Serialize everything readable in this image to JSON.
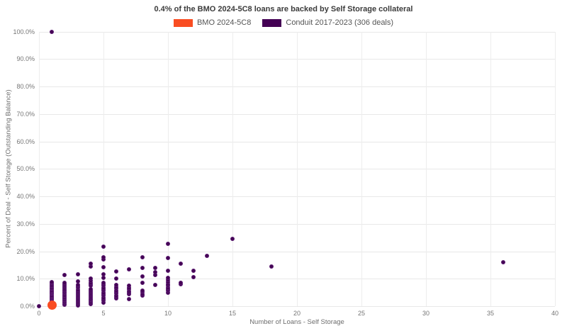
{
  "chart_data": {
    "type": "scatter",
    "title": "0.4% of the BMO 2024-5C8 loans are backed by Self Storage collateral",
    "xlabel": "Number of Loans - Self Storage",
    "ylabel": "Percent of Deal - Self Storage (Outstanding Balance)",
    "xlim": [
      0,
      40
    ],
    "ylim": [
      0,
      100
    ],
    "x_ticks": [
      0,
      5,
      10,
      15,
      20,
      25,
      30,
      35,
      40
    ],
    "x_tick_labels": [
      "0",
      "5",
      "10",
      "15",
      "20",
      "25",
      "30",
      "35",
      "40"
    ],
    "y_ticks": [
      0,
      10,
      20,
      30,
      40,
      50,
      60,
      70,
      80,
      90,
      100
    ],
    "y_tick_labels": [
      "0.0%",
      "10.0%",
      "20.0%",
      "30.0%",
      "40.0%",
      "50.0%",
      "60.0%",
      "70.0%",
      "80.0%",
      "90.0%",
      "100.0%"
    ],
    "grid": true,
    "legend_position": "top",
    "series": [
      {
        "name": "Conduit 2017-2023 (306 deals)",
        "color": "#440154",
        "edge_color": "#5a1a70",
        "marker_size": 6,
        "points": [
          [
            0,
            0.1
          ],
          [
            1,
            0.3
          ],
          [
            1,
            0.7
          ],
          [
            1,
            1.0
          ],
          [
            1,
            1.3
          ],
          [
            1,
            1.6
          ],
          [
            1,
            1.9
          ],
          [
            1,
            2.2
          ],
          [
            1,
            2.5
          ],
          [
            1,
            2.8
          ],
          [
            1,
            3.1
          ],
          [
            1,
            3.4
          ],
          [
            1,
            3.7
          ],
          [
            1,
            4.0
          ],
          [
            1,
            4.3
          ],
          [
            1,
            4.6
          ],
          [
            1,
            4.9
          ],
          [
            1,
            5.2
          ],
          [
            1,
            5.5
          ],
          [
            1,
            5.8
          ],
          [
            1,
            6.1
          ],
          [
            1,
            6.4
          ],
          [
            1,
            6.8
          ],
          [
            1,
            7.2
          ],
          [
            1,
            7.6
          ],
          [
            1,
            8.0
          ],
          [
            1,
            8.5
          ],
          [
            1,
            8.9
          ],
          [
            1,
            100.0
          ],
          [
            2,
            0.4
          ],
          [
            2,
            0.8
          ],
          [
            2,
            1.2
          ],
          [
            2,
            1.6
          ],
          [
            2,
            2.0
          ],
          [
            2,
            2.4
          ],
          [
            2,
            2.8
          ],
          [
            2,
            3.2
          ],
          [
            2,
            3.6
          ],
          [
            2,
            4.0
          ],
          [
            2,
            4.4
          ],
          [
            2,
            4.8
          ],
          [
            2,
            5.2
          ],
          [
            2,
            5.6
          ],
          [
            2,
            6.0
          ],
          [
            2,
            6.4
          ],
          [
            2,
            6.9
          ],
          [
            2,
            7.4
          ],
          [
            2,
            7.9
          ],
          [
            2,
            8.5
          ],
          [
            2,
            11.4
          ],
          [
            3,
            0.3
          ],
          [
            3,
            0.8
          ],
          [
            3,
            1.3
          ],
          [
            3,
            1.8
          ],
          [
            3,
            2.3
          ],
          [
            3,
            2.8
          ],
          [
            3,
            3.3
          ],
          [
            3,
            3.8
          ],
          [
            3,
            4.3
          ],
          [
            3,
            4.8
          ],
          [
            3,
            5.4
          ],
          [
            3,
            6.0
          ],
          [
            3,
            6.6
          ],
          [
            3,
            7.2
          ],
          [
            3,
            7.8
          ],
          [
            3,
            9.1
          ],
          [
            3,
            11.6
          ],
          [
            4,
            0.7
          ],
          [
            4,
            1.2
          ],
          [
            4,
            1.7
          ],
          [
            4,
            2.2
          ],
          [
            4,
            2.7
          ],
          [
            4,
            3.2
          ],
          [
            4,
            3.7
          ],
          [
            4,
            4.2
          ],
          [
            4,
            4.7
          ],
          [
            4,
            5.2
          ],
          [
            4,
            5.7
          ],
          [
            4,
            6.3
          ],
          [
            4,
            7.6
          ],
          [
            4,
            8.1
          ],
          [
            4,
            8.6
          ],
          [
            4,
            9.2
          ],
          [
            4,
            10.0
          ],
          [
            4,
            14.5
          ],
          [
            4,
            15.6
          ],
          [
            5,
            1.4
          ],
          [
            5,
            2.0
          ],
          [
            5,
            2.6
          ],
          [
            5,
            3.2
          ],
          [
            5,
            3.8
          ],
          [
            5,
            4.4
          ],
          [
            5,
            5.0
          ],
          [
            5,
            5.6
          ],
          [
            5,
            6.2
          ],
          [
            5,
            6.8
          ],
          [
            5,
            7.4
          ],
          [
            5,
            8.0
          ],
          [
            5,
            8.6
          ],
          [
            5,
            10.4
          ],
          [
            5,
            11.6
          ],
          [
            5,
            14.2
          ],
          [
            5,
            17.0
          ],
          [
            5,
            17.7
          ],
          [
            5,
            21.6
          ],
          [
            6,
            2.8
          ],
          [
            6,
            3.4
          ],
          [
            6,
            4.0
          ],
          [
            6,
            4.6
          ],
          [
            6,
            5.2
          ],
          [
            6,
            5.8
          ],
          [
            6,
            6.4
          ],
          [
            6,
            7.0
          ],
          [
            6,
            7.7
          ],
          [
            6,
            10.1
          ],
          [
            6,
            12.6
          ],
          [
            7,
            2.6
          ],
          [
            7,
            4.3
          ],
          [
            7,
            4.9
          ],
          [
            7,
            5.5
          ],
          [
            7,
            6.1
          ],
          [
            7,
            6.7
          ],
          [
            7,
            7.4
          ],
          [
            7,
            13.4
          ],
          [
            8,
            3.8
          ],
          [
            8,
            4.4
          ],
          [
            8,
            5.1
          ],
          [
            8,
            5.8
          ],
          [
            8,
            8.4
          ],
          [
            8,
            10.9
          ],
          [
            8,
            13.9
          ],
          [
            8,
            17.7
          ],
          [
            9,
            7.8
          ],
          [
            9,
            11.3
          ],
          [
            9,
            12.5
          ],
          [
            9,
            13.9
          ],
          [
            10,
            5.0
          ],
          [
            10,
            5.6
          ],
          [
            10,
            6.2
          ],
          [
            10,
            6.8
          ],
          [
            10,
            7.4
          ],
          [
            10,
            8.0
          ],
          [
            10,
            8.7
          ],
          [
            10,
            9.5
          ],
          [
            10,
            10.4
          ],
          [
            10,
            13.0
          ],
          [
            10,
            17.5
          ],
          [
            10,
            22.6
          ],
          [
            11,
            8.1
          ],
          [
            11,
            8.6
          ],
          [
            11,
            15.5
          ],
          [
            12,
            10.7
          ],
          [
            12,
            12.8
          ],
          [
            13,
            18.2
          ],
          [
            15,
            24.5
          ],
          [
            18,
            14.5
          ],
          [
            36,
            15.9
          ]
        ]
      },
      {
        "name": "BMO 2024-5C8",
        "color": "#f94d22",
        "edge_color": "#f94d22",
        "marker_size": 13,
        "points": [
          [
            1,
            0.4
          ]
        ]
      }
    ]
  },
  "legend": {
    "bmo_label": "BMO 2024-5C8",
    "conduit_label": "Conduit 2017-2023 (306 deals)"
  }
}
